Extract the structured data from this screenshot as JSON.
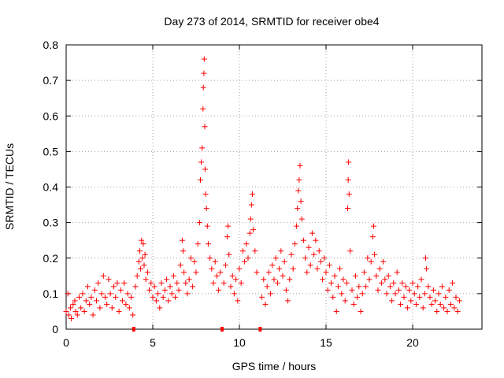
{
  "chart_data": {
    "type": "scatter",
    "title": "Day 273 of 2014, SRMTID for receiver obe4",
    "xlabel": "GPS time / hours",
    "ylabel": "SRMTID / TECUs",
    "xlim": [
      0,
      24
    ],
    "ylim": [
      0,
      0.8
    ],
    "xticks": [
      "0",
      "5",
      "10",
      "15",
      "20"
    ],
    "yticks": [
      "0",
      "0.1",
      "0.2",
      "0.3",
      "0.4",
      "0.5",
      "0.6",
      "0.7",
      "0.8"
    ],
    "grid": true,
    "marker": "+",
    "series_color": "#ff0000",
    "data_gaps_x": [
      3.9,
      9.0,
      11.2
    ],
    "series": [
      {
        "name": "SRMTID",
        "points": [
          [
            0.0,
            0.05
          ],
          [
            0.1,
            0.1
          ],
          [
            0.15,
            0.04
          ],
          [
            0.25,
            0.06
          ],
          [
            0.3,
            0.03
          ],
          [
            0.4,
            0.07
          ],
          [
            0.5,
            0.08
          ],
          [
            0.55,
            0.05
          ],
          [
            0.65,
            0.04
          ],
          [
            0.75,
            0.09
          ],
          [
            0.85,
            0.06
          ],
          [
            0.95,
            0.1
          ],
          [
            1.05,
            0.05
          ],
          [
            1.15,
            0.08
          ],
          [
            1.25,
            0.12
          ],
          [
            1.35,
            0.07
          ],
          [
            1.45,
            0.09
          ],
          [
            1.55,
            0.04
          ],
          [
            1.65,
            0.11
          ],
          [
            1.75,
            0.08
          ],
          [
            1.85,
            0.13
          ],
          [
            1.95,
            0.06
          ],
          [
            2.05,
            0.1
          ],
          [
            2.15,
            0.15
          ],
          [
            2.25,
            0.09
          ],
          [
            2.35,
            0.07
          ],
          [
            2.45,
            0.14
          ],
          [
            2.55,
            0.1
          ],
          [
            2.65,
            0.06
          ],
          [
            2.75,
            0.12
          ],
          [
            2.85,
            0.09
          ],
          [
            2.95,
            0.13
          ],
          [
            3.05,
            0.05
          ],
          [
            3.15,
            0.11
          ],
          [
            3.25,
            0.08
          ],
          [
            3.35,
            0.13
          ],
          [
            3.45,
            0.07
          ],
          [
            3.55,
            0.1
          ],
          [
            3.65,
            0.06
          ],
          [
            3.75,
            0.09
          ],
          [
            3.85,
            0.04
          ],
          [
            4.0,
            0.12
          ],
          [
            4.1,
            0.15
          ],
          [
            4.2,
            0.19
          ],
          [
            4.25,
            0.22
          ],
          [
            4.3,
            0.17
          ],
          [
            4.35,
            0.25
          ],
          [
            4.4,
            0.2
          ],
          [
            4.45,
            0.24
          ],
          [
            4.5,
            0.18
          ],
          [
            4.55,
            0.21
          ],
          [
            4.6,
            0.14
          ],
          [
            4.7,
            0.16
          ],
          [
            4.8,
            0.11
          ],
          [
            4.9,
            0.13
          ],
          [
            5.0,
            0.09
          ],
          [
            5.1,
            0.12
          ],
          [
            5.2,
            0.08
          ],
          [
            5.3,
            0.1
          ],
          [
            5.4,
            0.06
          ],
          [
            5.5,
            0.13
          ],
          [
            5.6,
            0.09
          ],
          [
            5.7,
            0.11
          ],
          [
            5.8,
            0.14
          ],
          [
            5.9,
            0.08
          ],
          [
            6.0,
            0.12
          ],
          [
            6.1,
            0.1
          ],
          [
            6.2,
            0.15
          ],
          [
            6.3,
            0.09
          ],
          [
            6.4,
            0.13
          ],
          [
            6.5,
            0.11
          ],
          [
            6.6,
            0.18
          ],
          [
            6.7,
            0.25
          ],
          [
            6.75,
            0.22
          ],
          [
            6.8,
            0.16
          ],
          [
            6.9,
            0.13
          ],
          [
            7.0,
            0.1
          ],
          [
            7.1,
            0.14
          ],
          [
            7.2,
            0.2
          ],
          [
            7.3,
            0.12
          ],
          [
            7.4,
            0.19
          ],
          [
            7.5,
            0.16
          ],
          [
            7.6,
            0.24
          ],
          [
            7.7,
            0.3
          ],
          [
            7.75,
            0.42
          ],
          [
            7.8,
            0.47
          ],
          [
            7.85,
            0.51
          ],
          [
            7.9,
            0.62
          ],
          [
            7.92,
            0.68
          ],
          [
            7.95,
            0.72
          ],
          [
            7.97,
            0.76
          ],
          [
            8.0,
            0.57
          ],
          [
            8.02,
            0.45
          ],
          [
            8.05,
            0.38
          ],
          [
            8.1,
            0.34
          ],
          [
            8.15,
            0.29
          ],
          [
            8.2,
            0.24
          ],
          [
            8.3,
            0.2
          ],
          [
            8.4,
            0.17
          ],
          [
            8.5,
            0.13
          ],
          [
            8.6,
            0.19
          ],
          [
            8.7,
            0.15
          ],
          [
            8.8,
            0.11
          ],
          [
            8.9,
            0.16
          ],
          [
            9.1,
            0.13
          ],
          [
            9.2,
            0.18
          ],
          [
            9.3,
            0.26
          ],
          [
            9.35,
            0.29
          ],
          [
            9.4,
            0.21
          ],
          [
            9.5,
            0.12
          ],
          [
            9.6,
            0.15
          ],
          [
            9.7,
            0.1
          ],
          [
            9.8,
            0.14
          ],
          [
            9.9,
            0.08
          ],
          [
            10.0,
            0.17
          ],
          [
            10.1,
            0.13
          ],
          [
            10.2,
            0.22
          ],
          [
            10.3,
            0.19
          ],
          [
            10.4,
            0.24
          ],
          [
            10.5,
            0.2
          ],
          [
            10.6,
            0.27
          ],
          [
            10.65,
            0.31
          ],
          [
            10.7,
            0.35
          ],
          [
            10.75,
            0.38
          ],
          [
            10.8,
            0.28
          ],
          [
            10.9,
            0.22
          ],
          [
            11.0,
            0.16
          ],
          [
            11.3,
            0.09
          ],
          [
            11.4,
            0.14
          ],
          [
            11.5,
            0.07
          ],
          [
            11.6,
            0.12
          ],
          [
            11.7,
            0.16
          ],
          [
            11.8,
            0.1
          ],
          [
            11.9,
            0.18
          ],
          [
            12.0,
            0.14
          ],
          [
            12.1,
            0.2
          ],
          [
            12.2,
            0.13
          ],
          [
            12.3,
            0.17
          ],
          [
            12.4,
            0.22
          ],
          [
            12.5,
            0.15
          ],
          [
            12.6,
            0.19
          ],
          [
            12.7,
            0.11
          ],
          [
            12.8,
            0.08
          ],
          [
            12.9,
            0.14
          ],
          [
            13.0,
            0.21
          ],
          [
            13.1,
            0.17
          ],
          [
            13.2,
            0.24
          ],
          [
            13.3,
            0.29
          ],
          [
            13.35,
            0.34
          ],
          [
            13.4,
            0.39
          ],
          [
            13.45,
            0.42
          ],
          [
            13.5,
            0.46
          ],
          [
            13.55,
            0.36
          ],
          [
            13.6,
            0.31
          ],
          [
            13.7,
            0.25
          ],
          [
            13.8,
            0.2
          ],
          [
            13.9,
            0.16
          ],
          [
            14.0,
            0.23
          ],
          [
            14.1,
            0.18
          ],
          [
            14.2,
            0.27
          ],
          [
            14.3,
            0.21
          ],
          [
            14.4,
            0.25
          ],
          [
            14.5,
            0.17
          ],
          [
            14.6,
            0.22
          ],
          [
            14.7,
            0.19
          ],
          [
            14.8,
            0.14
          ],
          [
            14.9,
            0.2
          ],
          [
            15.0,
            0.16
          ],
          [
            15.1,
            0.11
          ],
          [
            15.2,
            0.18
          ],
          [
            15.3,
            0.13
          ],
          [
            15.4,
            0.09
          ],
          [
            15.5,
            0.15
          ],
          [
            15.6,
            0.05
          ],
          [
            15.7,
            0.12
          ],
          [
            15.8,
            0.17
          ],
          [
            15.9,
            0.1
          ],
          [
            16.0,
            0.14
          ],
          [
            16.1,
            0.08
          ],
          [
            16.2,
            0.13
          ],
          [
            16.25,
            0.34
          ],
          [
            16.28,
            0.42
          ],
          [
            16.3,
            0.47
          ],
          [
            16.33,
            0.38
          ],
          [
            16.4,
            0.22
          ],
          [
            16.5,
            0.11
          ],
          [
            16.6,
            0.07
          ],
          [
            16.7,
            0.15
          ],
          [
            16.8,
            0.09
          ],
          [
            16.9,
            0.12
          ],
          [
            17.0,
            0.05
          ],
          [
            17.1,
            0.1
          ],
          [
            17.2,
            0.16
          ],
          [
            17.3,
            0.12
          ],
          [
            17.4,
            0.2
          ],
          [
            17.5,
            0.14
          ],
          [
            17.6,
            0.19
          ],
          [
            17.7,
            0.26
          ],
          [
            17.75,
            0.29
          ],
          [
            17.8,
            0.21
          ],
          [
            17.9,
            0.15
          ],
          [
            18.0,
            0.11
          ],
          [
            18.1,
            0.17
          ],
          [
            18.2,
            0.13
          ],
          [
            18.3,
            0.19
          ],
          [
            18.4,
            0.14
          ],
          [
            18.5,
            0.1
          ],
          [
            18.6,
            0.15
          ],
          [
            18.7,
            0.12
          ],
          [
            18.8,
            0.08
          ],
          [
            18.9,
            0.13
          ],
          [
            19.0,
            0.1
          ],
          [
            19.1,
            0.16
          ],
          [
            19.2,
            0.11
          ],
          [
            19.3,
            0.07
          ],
          [
            19.4,
            0.13
          ],
          [
            19.5,
            0.09
          ],
          [
            19.6,
            0.12
          ],
          [
            19.7,
            0.06
          ],
          [
            19.8,
            0.11
          ],
          [
            19.9,
            0.08
          ],
          [
            20.0,
            0.13
          ],
          [
            20.1,
            0.1
          ],
          [
            20.2,
            0.07
          ],
          [
            20.3,
            0.12
          ],
          [
            20.4,
            0.09
          ],
          [
            20.5,
            0.14
          ],
          [
            20.6,
            0.06
          ],
          [
            20.7,
            0.1
          ],
          [
            20.75,
            0.2
          ],
          [
            20.8,
            0.17
          ],
          [
            20.9,
            0.12
          ],
          [
            21.0,
            0.09
          ],
          [
            21.1,
            0.07
          ],
          [
            21.2,
            0.11
          ],
          [
            21.3,
            0.08
          ],
          [
            21.4,
            0.05
          ],
          [
            21.5,
            0.1
          ],
          [
            21.6,
            0.07
          ],
          [
            21.7,
            0.12
          ],
          [
            21.8,
            0.06
          ],
          [
            21.9,
            0.09
          ],
          [
            22.0,
            0.05
          ],
          [
            22.1,
            0.11
          ],
          [
            22.2,
            0.07
          ],
          [
            22.3,
            0.13
          ],
          [
            22.4,
            0.06
          ],
          [
            22.5,
            0.09
          ],
          [
            22.6,
            0.05
          ],
          [
            22.7,
            0.08
          ]
        ]
      }
    ]
  }
}
